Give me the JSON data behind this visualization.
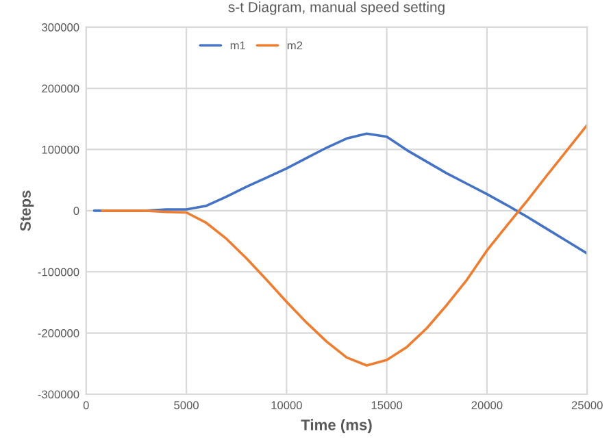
{
  "chart_data": {
    "type": "line",
    "title": "s-t Diagram, manual speed setting",
    "xlabel": "Time (ms)",
    "ylabel": "Steps",
    "series": [
      {
        "name": "m1",
        "color": "#4472c4",
        "x": [
          400,
          1000,
          2000,
          3000,
          4000,
          5000,
          6000,
          7000,
          8000,
          9000,
          10000,
          11000,
          12000,
          13000,
          14000,
          15000,
          16000,
          17000,
          18000,
          19000,
          20000,
          21000,
          22000,
          23000,
          24000,
          25000
        ],
        "values": [
          0,
          0,
          0,
          0,
          2000,
          2000,
          8000,
          23000,
          39000,
          54000,
          69000,
          86000,
          103000,
          118000,
          126000,
          121000,
          99000,
          80000,
          61000,
          44000,
          27000,
          9000,
          -10000,
          -30000,
          -50000,
          -70000
        ]
      },
      {
        "name": "m2",
        "color": "#ed7d31",
        "x": [
          800,
          1000,
          2000,
          3000,
          4000,
          5000,
          6000,
          7000,
          8000,
          9000,
          10000,
          11000,
          12000,
          13000,
          14000,
          15000,
          16000,
          17000,
          18000,
          19000,
          20000,
          21000,
          22000,
          23000,
          24000,
          25000
        ],
        "values": [
          0,
          0,
          0,
          0,
          -2000,
          -3000,
          -20000,
          -46000,
          -78000,
          -113000,
          -149000,
          -183000,
          -214000,
          -240000,
          -253000,
          -244000,
          -223000,
          -192000,
          -154000,
          -113000,
          -65000,
          -24000,
          16000,
          58000,
          99000,
          140000
        ]
      }
    ],
    "xlim": [
      0,
      25000
    ],
    "xticks": [
      0,
      5000,
      10000,
      15000,
      20000,
      25000
    ],
    "ylim": [
      -300000,
      300000
    ],
    "yticks": [
      -300000,
      -200000,
      -100000,
      0,
      100000,
      200000,
      300000
    ],
    "grid": true,
    "legend": "top",
    "marker": "none",
    "line_style": "solid"
  }
}
